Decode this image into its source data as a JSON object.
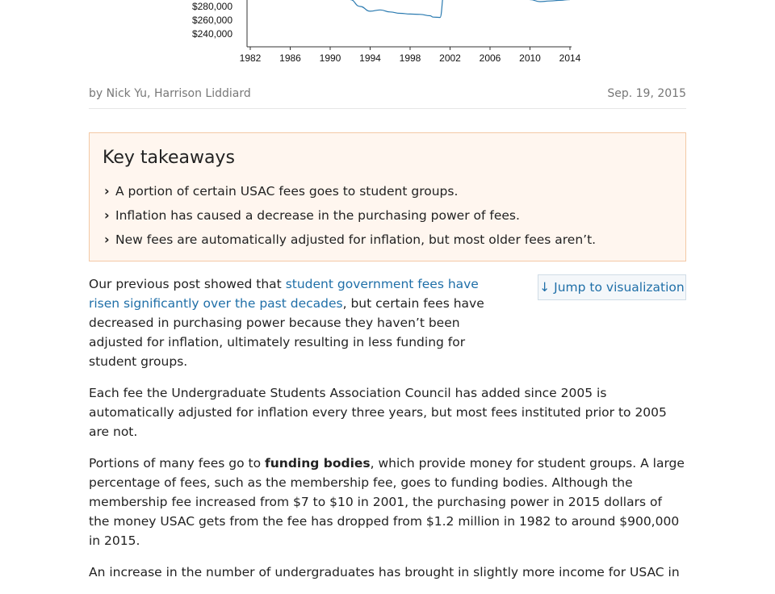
{
  "chart_data": {
    "type": "line",
    "y_ticks": [
      "$280,000",
      "$260,000",
      "$240,000"
    ],
    "x_ticks": [
      "1982",
      "1986",
      "1990",
      "1994",
      "1998",
      "2002",
      "2006",
      "2010",
      "2014"
    ],
    "series": [
      {
        "x": [
          1992,
          1993,
          1994,
          1995,
          1996,
          1997,
          1998,
          1999,
          2000,
          2000.3,
          2001,
          2001.4,
          2009,
          2009.5,
          2010,
          2011,
          2012,
          2013,
          2014
        ],
        "values": [
          290000,
          280000,
          273000,
          275000,
          272000,
          270000,
          269000,
          268500,
          266500,
          264500,
          264000,
          300000,
          300000,
          296000,
          290000,
          287000,
          288000,
          289000,
          290000
        ]
      }
    ],
    "colors": {
      "line": "#2a7ab0",
      "axis": "#333333"
    }
  },
  "article": {
    "byline": "by Nick Yu, Harrison Liddiard",
    "date": "Sep. 19, 2015"
  },
  "takeaways": {
    "title": "Key takeaways",
    "items": [
      "A portion of certain USAC fees goes to student groups.",
      "Inflation has caused a decrease in the purchasing power of fees.",
      "New fees are automatically adjusted for inflation, but most older fees aren’t."
    ]
  },
  "jump_button": "↓ Jump to visualization",
  "paragraphs": {
    "p1_prefix": "Our previous post showed that ",
    "p1_link": "student government fees have risen significantly over the past decades",
    "p1_suffix": ", but certain fees have decreased in purchasing power because they haven’t been adjusted for inflation, ultimately resulting in less funding for student groups.",
    "p2": "Each fee the Undergraduate Students Association Council has added since 2005 is automatically adjusted for inflation every three years, but most fees instituted prior to 2005 are not.",
    "p3_prefix": "Portions of many fees go to ",
    "p3_bold": "funding bodies",
    "p3_suffix": ", which provide money for student groups. A large percentage of fees, such as the membership fee, goes to funding bodies. Although the membership fee increased from $7 to $10 in 2001, the purchasing power in 2015 dollars of the money USAC gets from the fee has dropped from $1.2 million in 1982 to around $900,000 in 2015.",
    "p4": "An increase in the number of undergraduates has brought in slightly more income for USAC in"
  }
}
